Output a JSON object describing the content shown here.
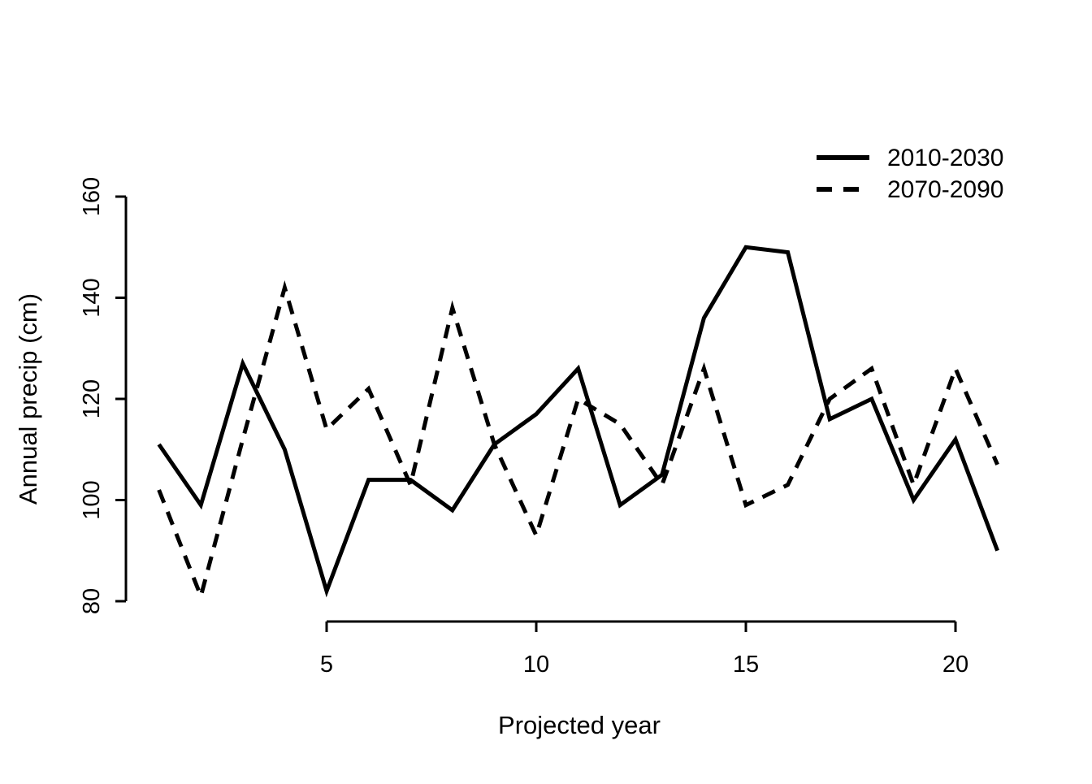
{
  "chart_data": {
    "type": "line",
    "title": "",
    "xlabel": "Projected year",
    "ylabel": "Annual precip (cm)",
    "x": [
      1,
      2,
      3,
      4,
      5,
      6,
      7,
      8,
      9,
      10,
      11,
      12,
      13,
      14,
      15,
      16,
      17,
      18,
      19,
      20,
      21
    ],
    "series": [
      {
        "name": "2010-2030",
        "style": "solid",
        "values": [
          111,
          99,
          127,
          110,
          82,
          104,
          104,
          98,
          111,
          117,
          126,
          99,
          105,
          136,
          150,
          149,
          116,
          120,
          100,
          112,
          90
        ]
      },
      {
        "name": "2070-2090",
        "style": "dashed",
        "values": [
          102,
          81,
          112,
          142,
          114,
          122,
          103,
          138,
          111,
          93,
          120,
          115,
          103,
          126,
          99,
          103,
          120,
          126,
          103,
          126,
          107
        ]
      }
    ],
    "xticks": [
      5,
      10,
      15,
      20
    ],
    "yticks": [
      80,
      100,
      120,
      140,
      160
    ],
    "xlim": [
      1,
      21
    ],
    "ylim": [
      80,
      160
    ],
    "grid": false,
    "legend_position": "top-right",
    "line_color": "#000000",
    "background": "#ffffff"
  },
  "legend": {
    "items": [
      {
        "label": "2010-2030",
        "style": "solid"
      },
      {
        "label": "2070-2090",
        "style": "dashed"
      }
    ]
  }
}
